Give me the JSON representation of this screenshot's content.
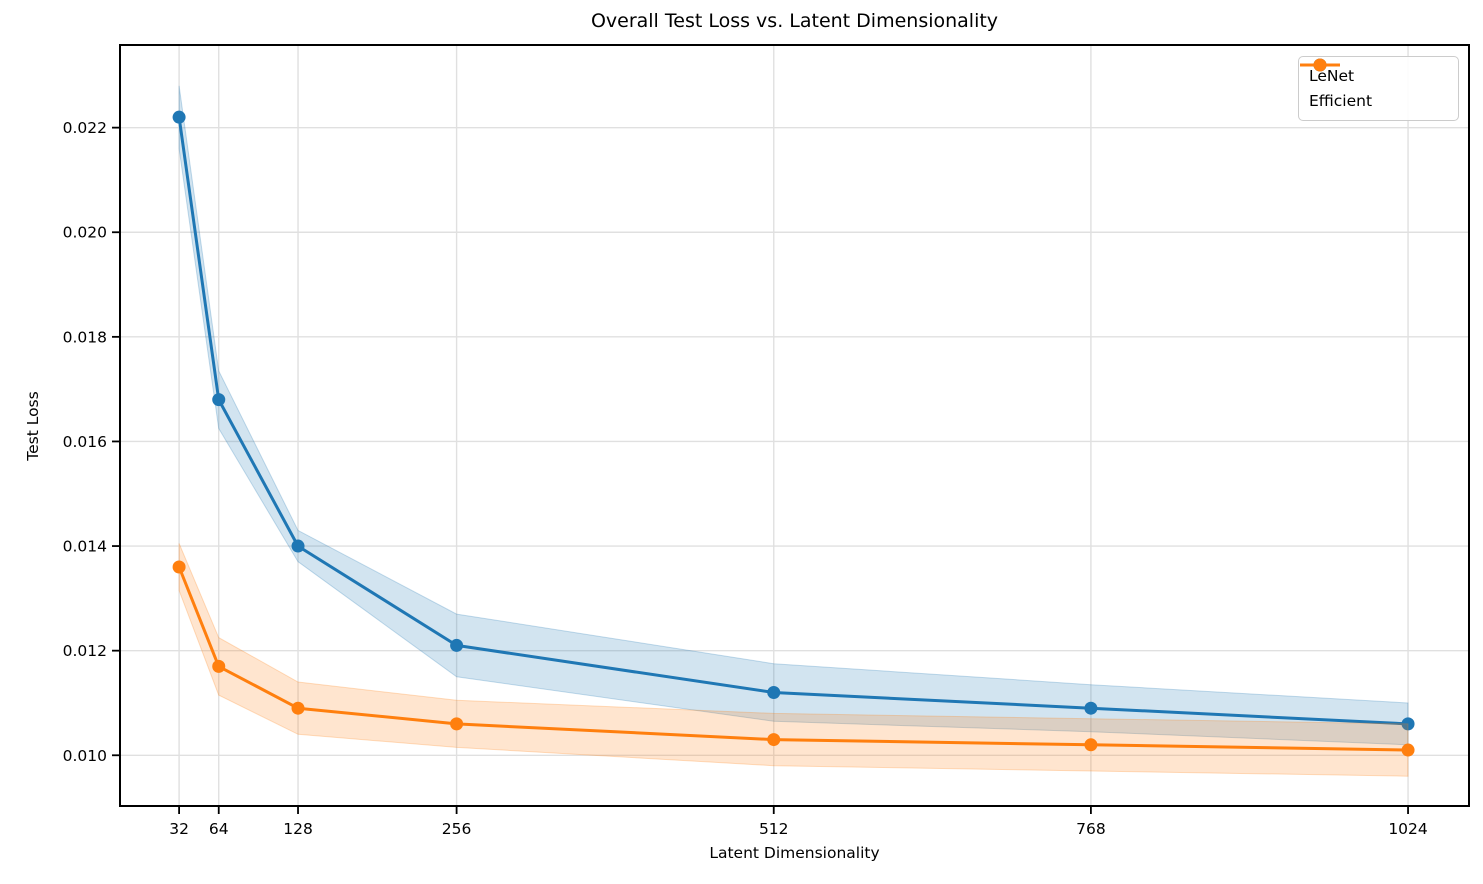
{
  "chart_data": {
    "type": "line",
    "title": "Overall Test Loss vs. Latent Dimensionality",
    "xlabel": "Latent Dimensionality",
    "ylabel": "Test Loss",
    "x": [
      32,
      64,
      128,
      256,
      512,
      768,
      1024
    ],
    "x_tick_labels": [
      "32",
      "64",
      "128",
      "256",
      "512",
      "768",
      "1024"
    ],
    "y_ticks": [
      0.01,
      0.012,
      0.014,
      0.016,
      0.018,
      0.02,
      0.022
    ],
    "y_tick_labels": [
      "0.010",
      "0.012",
      "0.014",
      "0.016",
      "0.018",
      "0.020",
      "0.022"
    ],
    "xlim": [
      -15.7,
      1073.2
    ],
    "ylim": [
      0.00903,
      0.02358
    ],
    "grid": true,
    "legend_position": "upper right",
    "band_alpha": 0.2,
    "grid_color": "#e0e0e0",
    "axis_color": "#000000",
    "series": [
      {
        "name": "LeNet",
        "color": "#1f77b4",
        "values": [
          0.0222,
          0.0168,
          0.014,
          0.0121,
          0.0112,
          0.0109,
          0.0106
        ],
        "std": [
          0.0006,
          0.00055,
          0.0003,
          0.0006,
          0.00055,
          0.00045,
          0.0004
        ]
      },
      {
        "name": "Efficient",
        "color": "#ff7f0e",
        "values": [
          0.0136,
          0.0117,
          0.0109,
          0.0106,
          0.0103,
          0.0102,
          0.0101
        ],
        "std": [
          0.00045,
          0.00055,
          0.0005,
          0.00045,
          0.0005,
          0.0005,
          0.0005
        ]
      }
    ]
  }
}
